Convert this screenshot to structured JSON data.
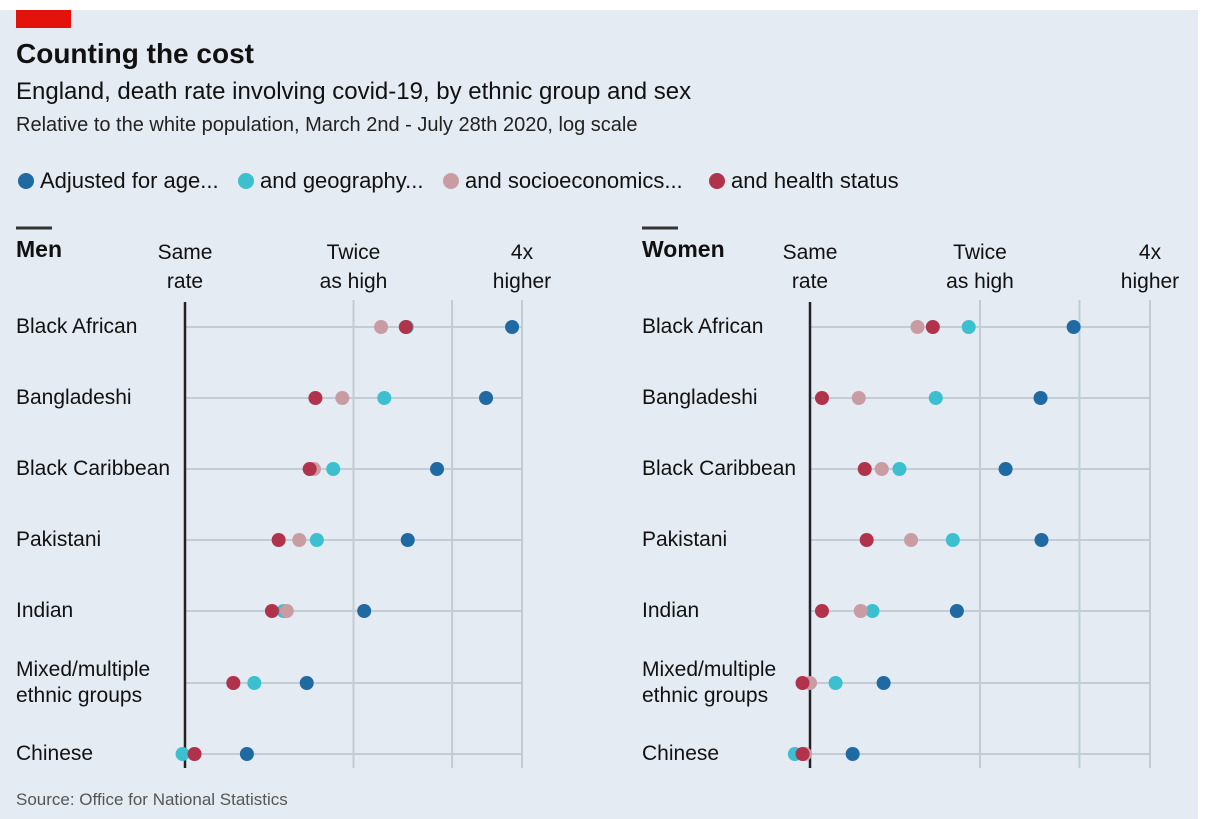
{
  "header": {
    "title": "Counting the cost",
    "subtitle": "England, death rate involving covid-19, by ethnic group and sex",
    "note": "Relative to the white population, March 2nd - July 28th 2020, log scale"
  },
  "chart_data": [
    {
      "type": "dot",
      "title": "Men",
      "categories": [
        "Black African",
        "Bangladeshi",
        "Black Caribbean",
        "Pakistani",
        "Indian",
        "Mixed/multiple ethnic groups",
        "Chinese"
      ],
      "series": [
        {
          "name": "Adjusted for age...",
          "color": "#1f6aa3",
          "values": [
            3.84,
            3.45,
            2.82,
            2.5,
            2.09,
            1.65,
            1.29
          ]
        },
        {
          "name": "and geography...",
          "color": "#3cc0d0",
          "values": [
            2.49,
            2.27,
            1.84,
            1.72,
            1.5,
            1.33,
            0.99
          ]
        },
        {
          "name": "and socioeconomics...",
          "color": "#c99ca4",
          "values": [
            2.24,
            1.91,
            1.7,
            1.6,
            1.52,
            1.22,
            1.04
          ]
        },
        {
          "name": "and health status",
          "color": "#b0334b",
          "values": [
            2.48,
            1.71,
            1.67,
            1.47,
            1.43,
            1.22,
            1.04
          ]
        }
      ],
      "xlim": [
        1,
        4
      ],
      "log_x": true,
      "xticks": [
        {
          "value": 1,
          "label": "Same rate"
        },
        {
          "value": 2,
          "label": "Twice as high"
        },
        {
          "value": 3,
          "label": null
        },
        {
          "value": 4,
          "label": "4x higher"
        }
      ],
      "grid": true
    },
    {
      "type": "dot",
      "title": "Women",
      "categories": [
        "Black African",
        "Bangladeshi",
        "Black Caribbean",
        "Pakistani",
        "Indian",
        "Mixed/multiple ethnic groups",
        "Chinese"
      ],
      "series": [
        {
          "color": "#1f6aa3",
          "values": [
            2.93,
            2.56,
            2.22,
            2.57,
            1.82,
            1.35,
            1.19
          ]
        },
        {
          "color": "#3cc0d0",
          "values": [
            1.91,
            1.67,
            1.44,
            1.79,
            1.29,
            1.11,
            0.94
          ]
        },
        {
          "color": "#c99ca4",
          "values": [
            1.55,
            1.22,
            1.34,
            1.51,
            1.23,
            1.0,
            0.98
          ]
        },
        {
          "color": "#b0334b",
          "values": [
            1.65,
            1.05,
            1.25,
            1.26,
            1.05,
            0.97,
            0.97
          ]
        }
      ],
      "xlim": [
        1,
        4
      ],
      "log_x": true,
      "xticks": [
        {
          "value": 1,
          "label": "Same rate"
        },
        {
          "value": 2,
          "label": "Twice as high"
        },
        {
          "value": 3,
          "label": null
        },
        {
          "value": 4,
          "label": "4x higher"
        }
      ],
      "grid": true
    }
  ],
  "source": "Source: Office for National Statistics"
}
